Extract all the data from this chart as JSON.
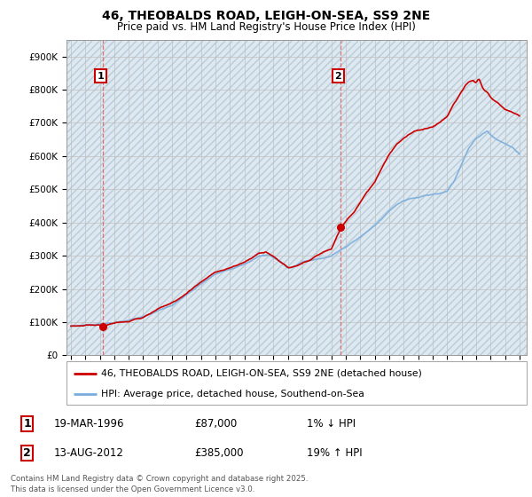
{
  "title_line1": "46, THEOBALDS ROAD, LEIGH-ON-SEA, SS9 2NE",
  "title_line2": "Price paid vs. HM Land Registry's House Price Index (HPI)",
  "ylim": [
    0,
    950000
  ],
  "yticks": [
    0,
    100000,
    200000,
    300000,
    400000,
    500000,
    600000,
    700000,
    800000,
    900000
  ],
  "ytick_labels": [
    "£0",
    "£100K",
    "£200K",
    "£300K",
    "£400K",
    "£500K",
    "£600K",
    "£700K",
    "£800K",
    "£900K"
  ],
  "xlim_start": 1993.7,
  "xlim_end": 2025.5,
  "xticks": [
    1994,
    1995,
    1996,
    1997,
    1998,
    1999,
    2000,
    2001,
    2002,
    2003,
    2004,
    2005,
    2006,
    2007,
    2008,
    2009,
    2010,
    2011,
    2012,
    2013,
    2014,
    2015,
    2016,
    2017,
    2018,
    2019,
    2020,
    2021,
    2022,
    2023,
    2024,
    2025
  ],
  "transaction1_x": 1996.21,
  "transaction1_y": 87000,
  "transaction1_label": "1",
  "transaction1_date": "19-MAR-1996",
  "transaction1_price": "£87,000",
  "transaction1_hpi": "1% ↓ HPI",
  "transaction2_x": 2012.62,
  "transaction2_y": 385000,
  "transaction2_label": "2",
  "transaction2_date": "13-AUG-2012",
  "transaction2_price": "£385,000",
  "transaction2_hpi": "19% ↑ HPI",
  "legend_line1": "46, THEOBALDS ROAD, LEIGH-ON-SEA, SS9 2NE (detached house)",
  "legend_line2": "HPI: Average price, detached house, Southend-on-Sea",
  "footnote": "Contains HM Land Registry data © Crown copyright and database right 2025.\nThis data is licensed under the Open Government Licence v3.0.",
  "line_color": "#cc0000",
  "hpi_color": "#7aaddc",
  "bg_color": "#dde8f0",
  "grid_color": "#c0c0c0",
  "hatch_color": "#c8d8e8",
  "marker_color": "#cc0000",
  "dashed_line_color": "#e06060"
}
